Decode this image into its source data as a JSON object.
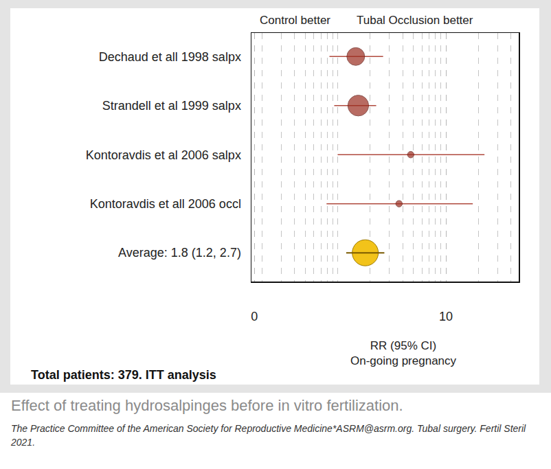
{
  "chart_data": {
    "type": "forest",
    "header_left": "Control better",
    "header_right": "Tubal Occlusion better",
    "categories": [
      "Dechaud et all 1998 salpx",
      "Strandell et al 1999 salpx",
      "Kontoravdis et al 2006 salpx",
      "Kontoravdis et all 2006 occl"
    ],
    "values": [
      1.47,
      1.55,
      4.73,
      3.69
    ],
    "ci_low": [
      0.84,
      0.93,
      1.0,
      0.79
    ],
    "ci_high": [
      2.63,
      2.27,
      22.7,
      17.7
    ],
    "weights": [
      38,
      52,
      5,
      5
    ],
    "color": "#9b2d20",
    "summary": {
      "label": "Average: 1.8 (1.2, 2.7)",
      "value": 1.8,
      "ci_low": 1.2,
      "ci_high": 2.7,
      "color": "#f2c31a"
    },
    "reference": 1,
    "xlabel": "RR (95% CI)\nOn-going pregnancy",
    "note": "Total patients: 379. ITT analysis",
    "log": "x",
    "xlim": [
      0.16,
      47
    ],
    "xticks": [
      {
        "value": 0.17,
        "label": "0"
      },
      10
    ],
    "grid": true,
    "caption": "Effect of treating hydrosalpinges before in vitro fertilization.",
    "source": "The Practice Committee of the American Society for Reproductive Medicine*ASRM@asrm.org. Tubal surgery. Fertil Steril 2021."
  }
}
